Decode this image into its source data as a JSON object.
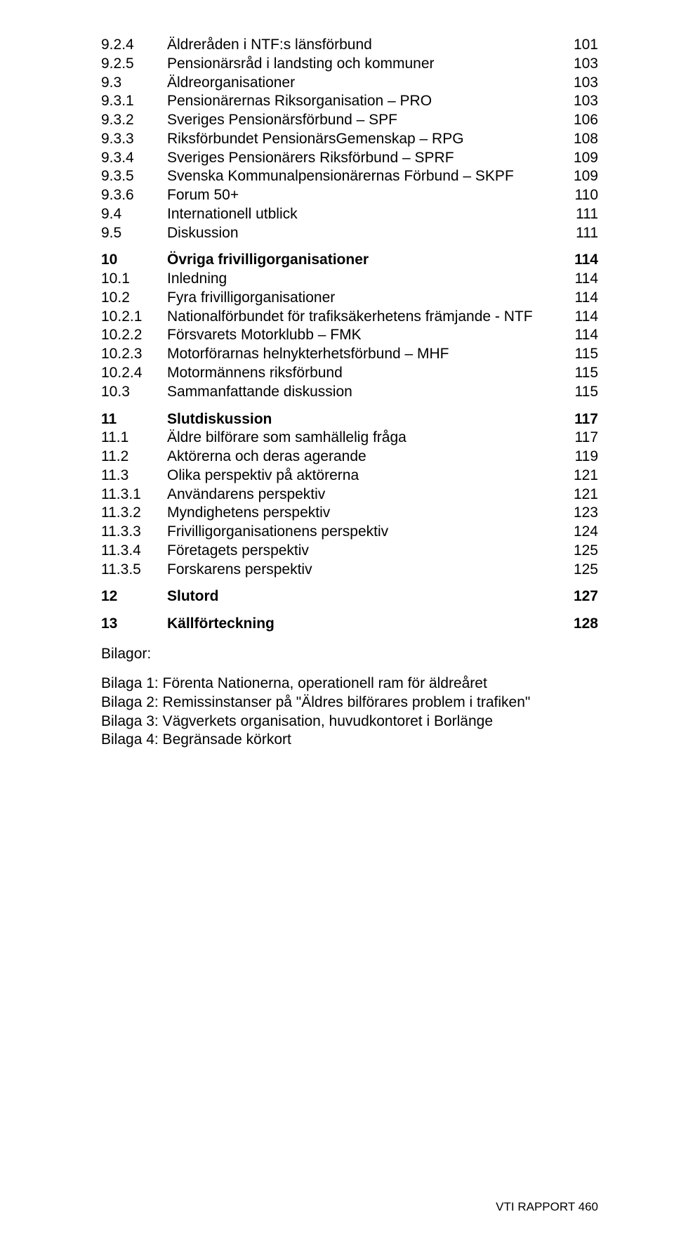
{
  "toc": [
    {
      "num": "9.2.4",
      "label": "Äldreråden i NTF:s länsförbund",
      "page": "101",
      "bold": false
    },
    {
      "num": "9.2.5",
      "label": "Pensionärsråd i landsting och kommuner",
      "page": "103",
      "bold": false
    },
    {
      "num": "9.3",
      "label": "Äldreorganisationer",
      "page": "103",
      "bold": false
    },
    {
      "num": "9.3.1",
      "label": "Pensionärernas Riksorganisation – PRO",
      "page": "103",
      "bold": false
    },
    {
      "num": "9.3.2",
      "label": "Sveriges Pensionärsförbund – SPF",
      "page": "106",
      "bold": false
    },
    {
      "num": "9.3.3",
      "label": "Riksförbundet PensionärsGemenskap – RPG",
      "page": "108",
      "bold": false
    },
    {
      "num": "9.3.4",
      "label": "Sveriges Pensionärers Riksförbund – SPRF",
      "page": "109",
      "bold": false
    },
    {
      "num": "9.3.5",
      "label": "Svenska Kommunalpensionärernas Förbund – SKPF",
      "page": "109",
      "bold": false
    },
    {
      "num": "9.3.6",
      "label": "Forum 50+",
      "page": "110",
      "bold": false
    },
    {
      "num": "9.4",
      "label": "Internationell utblick",
      "page": "111",
      "bold": false
    },
    {
      "num": "9.5",
      "label": "Diskussion",
      "page": "111",
      "bold": false
    },
    {
      "gap": "sm"
    },
    {
      "num": "10",
      "label": "Övriga frivilligorganisationer",
      "page": "114",
      "bold": true
    },
    {
      "num": "10.1",
      "label": "Inledning",
      "page": "114",
      "bold": false
    },
    {
      "num": "10.2",
      "label": "Fyra frivilligorganisationer",
      "page": "114",
      "bold": false
    },
    {
      "num": "10.2.1",
      "label": "Nationalförbundet för trafiksäkerhetens främjande - NTF",
      "page": "114",
      "bold": false
    },
    {
      "num": "10.2.2",
      "label": "Försvarets Motorklubb – FMK",
      "page": "114",
      "bold": false
    },
    {
      "num": "10.2.3",
      "label": "Motorförarnas helnykterhetsförbund – MHF",
      "page": "115",
      "bold": false
    },
    {
      "num": "10.2.4",
      "label": "Motormännens riksförbund",
      "page": "115",
      "bold": false
    },
    {
      "num": "10.3",
      "label": "Sammanfattande diskussion",
      "page": "115",
      "bold": false
    },
    {
      "gap": "sm"
    },
    {
      "num": "11",
      "label": "Slutdiskussion",
      "page": "117",
      "bold": true
    },
    {
      "num": "11.1",
      "label": "Äldre bilförare som samhällelig fråga",
      "page": "117",
      "bold": false
    },
    {
      "num": "11.2",
      "label": "Aktörerna och deras agerande",
      "page": "119",
      "bold": false
    },
    {
      "num": "11.3",
      "label": "Olika perspektiv på aktörerna",
      "page": "121",
      "bold": false
    },
    {
      "num": "11.3.1",
      "label": "Användarens perspektiv",
      "page": "121",
      "bold": false
    },
    {
      "num": "11.3.2",
      "label": "Myndighetens perspektiv",
      "page": "123",
      "bold": false
    },
    {
      "num": "11.3.3",
      "label": "Frivilligorganisationens perspektiv",
      "page": "124",
      "bold": false
    },
    {
      "num": "11.3.4",
      "label": "Företagets perspektiv",
      "page": "125",
      "bold": false
    },
    {
      "num": "11.3.5",
      "label": "Forskarens perspektiv",
      "page": "125",
      "bold": false
    },
    {
      "gap": "sm"
    },
    {
      "num": "12",
      "label": "Slutord",
      "page": "127",
      "bold": true
    },
    {
      "gap": "sm"
    },
    {
      "num": "13",
      "label": "Källförteckning",
      "page": "128",
      "bold": true
    }
  ],
  "bilagor_heading": "Bilagor:",
  "bilagor": [
    "Bilaga 1: Förenta Nationerna, operationell ram för äldreåret",
    "Bilaga 2: Remissinstanser på \"Äldres bilförares problem i trafiken\"",
    "Bilaga 3: Vägverkets organisation, huvudkontoret i Borlänge",
    "Bilaga 4: Begränsade körkort"
  ],
  "footer": "VTI RAPPORT 460"
}
